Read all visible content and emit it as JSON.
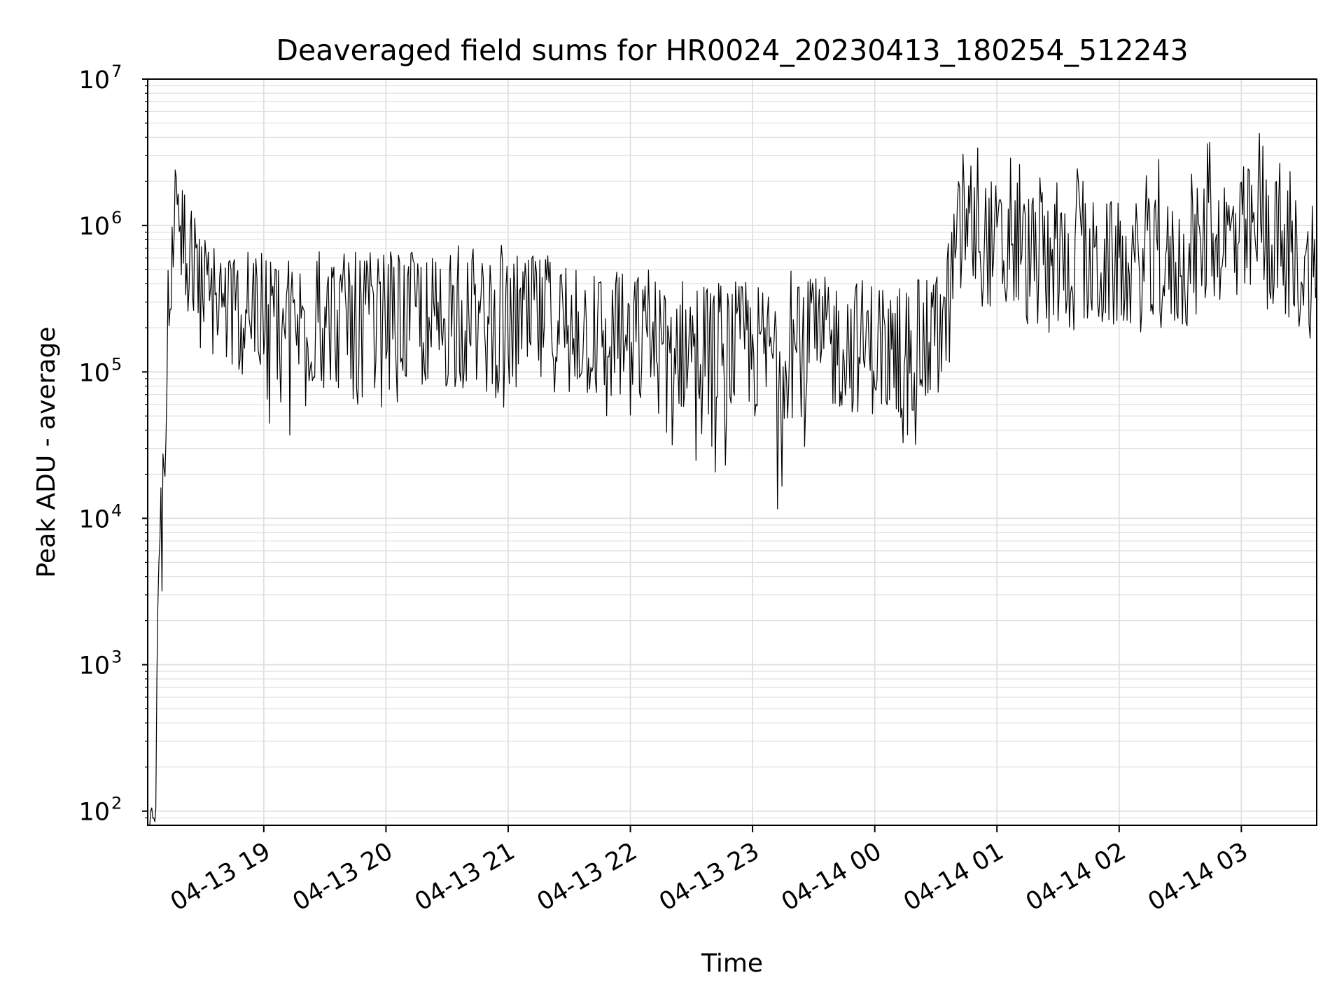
{
  "chart_data": {
    "type": "line",
    "title": "Deaveraged field sums for HR0024_20230413_180254_512243",
    "xlabel": "Time",
    "ylabel": "Peak ADU - average",
    "yscale": "log",
    "ylim": [
      80,
      10000000
    ],
    "xlim": [
      "2023-04-13 18:03",
      "2023-04-14 03:37"
    ],
    "grid": true,
    "line_color": "#000000",
    "grid_color": "#e0e0e0",
    "x_ticks": [
      {
        "value": "2023-04-13 19:00",
        "label": "04-13 19"
      },
      {
        "value": "2023-04-13 20:00",
        "label": "04-13 20"
      },
      {
        "value": "2023-04-13 21:00",
        "label": "04-13 21"
      },
      {
        "value": "2023-04-13 22:00",
        "label": "04-13 22"
      },
      {
        "value": "2023-04-13 23:00",
        "label": "04-13 23"
      },
      {
        "value": "2023-04-14 00:00",
        "label": "04-14 00"
      },
      {
        "value": "2023-04-14 01:00",
        "label": "04-14 01"
      },
      {
        "value": "2023-04-14 02:00",
        "label": "04-14 02"
      },
      {
        "value": "2023-04-14 03:00",
        "label": "04-14 03"
      }
    ],
    "y_ticks": [
      {
        "value": 100,
        "base": "10",
        "exp": "2"
      },
      {
        "value": 1000,
        "base": "10",
        "exp": "3"
      },
      {
        "value": 10000,
        "base": "10",
        "exp": "4"
      },
      {
        "value": 100000,
        "base": "10",
        "exp": "5"
      },
      {
        "value": 1000000,
        "base": "10",
        "exp": "6"
      },
      {
        "value": 10000000,
        "base": "10",
        "exp": "7"
      }
    ],
    "series": [
      {
        "x": [
          "2023-04-13 18:04",
          "2023-04-13 18:05",
          "2023-04-13 18:06",
          "2023-04-13 18:07",
          "2023-04-13 18:08",
          "2023-04-13 18:09",
          "2023-04-13 18:10",
          "2023-04-13 18:12",
          "2023-04-13 18:14",
          "2023-04-13 18:16",
          "2023-04-13 18:18",
          "2023-04-13 18:20",
          "2023-04-13 18:25",
          "2023-04-13 18:30",
          "2023-04-13 18:35",
          "2023-04-13 18:40",
          "2023-04-13 18:45",
          "2023-04-13 18:50",
          "2023-04-13 18:55",
          "2023-04-13 19:00",
          "2023-04-13 19:15",
          "2023-04-13 19:30",
          "2023-04-13 19:45",
          "2023-04-13 20:00",
          "2023-04-13 20:15",
          "2023-04-13 20:30",
          "2023-04-13 20:45",
          "2023-04-13 21:00",
          "2023-04-13 21:15",
          "2023-04-13 21:30",
          "2023-04-13 21:45",
          "2023-04-13 22:00",
          "2023-04-13 22:15",
          "2023-04-13 22:30",
          "2023-04-13 22:45",
          "2023-04-13 23:00",
          "2023-04-13 23:15",
          "2023-04-13 23:30",
          "2023-04-13 23:45",
          "2023-04-14 00:00",
          "2023-04-14 00:15",
          "2023-04-14 00:30",
          "2023-04-14 00:35",
          "2023-04-14 00:40",
          "2023-04-14 00:45",
          "2023-04-14 01:00",
          "2023-04-14 01:15",
          "2023-04-14 01:30",
          "2023-04-14 01:45",
          "2023-04-14 02:00",
          "2023-04-14 02:15",
          "2023-04-14 02:30",
          "2023-04-14 02:45",
          "2023-04-14 03:00",
          "2023-04-14 03:15",
          "2023-04-14 03:30",
          "2023-04-14 03:37"
        ],
        "y": [
          80,
          130,
          90,
          300,
          2500,
          15000,
          9000,
          60000,
          400000,
          1200000,
          1600000,
          1000000,
          600000,
          500000,
          450000,
          420000,
          400000,
          370000,
          340000,
          300000,
          280000,
          290000,
          300000,
          300000,
          290000,
          300000,
          270000,
          260000,
          280000,
          300000,
          230000,
          220000,
          200000,
          210000,
          200000,
          180000,
          190000,
          200000,
          210000,
          200000,
          190000,
          200000,
          300000,
          900000,
          1400000,
          900000,
          800000,
          750000,
          700000,
          650000,
          700000,
          650000,
          1000000,
          1200000,
          1100000,
          700000,
          400000
        ],
        "noise_min": [
          80,
          80,
          80,
          80,
          2500,
          4000,
          2800,
          30000,
          200000,
          500000,
          400000,
          300000,
          180000,
          130000,
          120000,
          100000,
          80000,
          60000,
          50000,
          40000,
          32000,
          40000,
          45000,
          60000,
          60000,
          40000,
          35000,
          30000,
          40000,
          35000,
          25000,
          22000,
          20000,
          20000,
          15000,
          12000,
          10000,
          25000,
          30000,
          30000,
          30000,
          35000,
          40000,
          200000,
          300000,
          250000,
          150000,
          150000,
          150000,
          200000,
          180000,
          180000,
          300000,
          280000,
          250000,
          140000,
          200000
        ],
        "noise_max": [
          80,
          130,
          90,
          300,
          2500,
          19000,
          16000,
          500000,
          1600000,
          2400000,
          2800000,
          2000000,
          1500000,
          900000,
          850000,
          800000,
          700000,
          700000,
          650000,
          650000,
          650000,
          700000,
          700000,
          750000,
          700000,
          750000,
          700000,
          800000,
          750000,
          650000,
          550000,
          550000,
          500000,
          500000,
          450000,
          500000,
          500000,
          500000,
          450000,
          450000,
          450000,
          450000,
          600000,
          3500000,
          4500000,
          3000000,
          3200000,
          2500000,
          2500000,
          2400000,
          3000000,
          3500000,
          4500000,
          6500000,
          6000000,
          3000000,
          1600000
        ]
      }
    ]
  }
}
